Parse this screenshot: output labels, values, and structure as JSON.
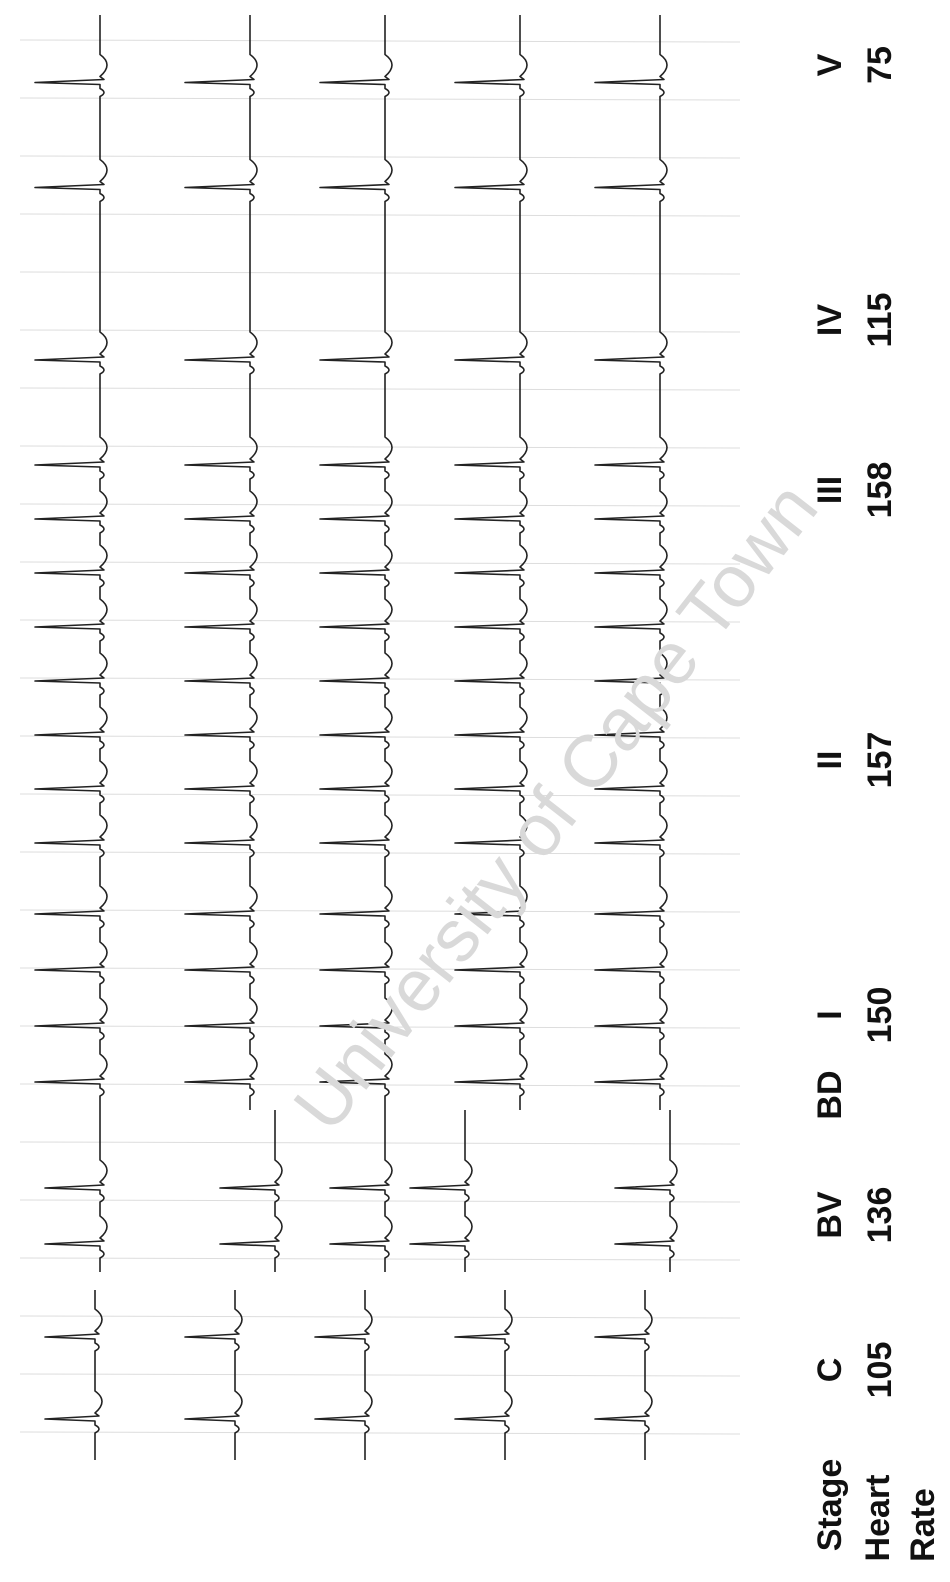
{
  "labels": {
    "stage": "Stage",
    "heart_rate": [
      "Heart",
      "Rate"
    ]
  },
  "stages": [
    {
      "name": "C",
      "heart_rate": "105"
    },
    {
      "name": "BV",
      "heart_rate": "136"
    },
    {
      "name": "BD"
    },
    {
      "name": "I",
      "heart_rate": "150"
    },
    {
      "name": "II",
      "heart_rate": "157"
    },
    {
      "name": "III",
      "heart_rate": "158"
    },
    {
      "name": "IV",
      "heart_rate": "115"
    },
    {
      "name": "V",
      "heart_rate": "75"
    }
  ],
  "watermark": "University of Cape Town"
}
